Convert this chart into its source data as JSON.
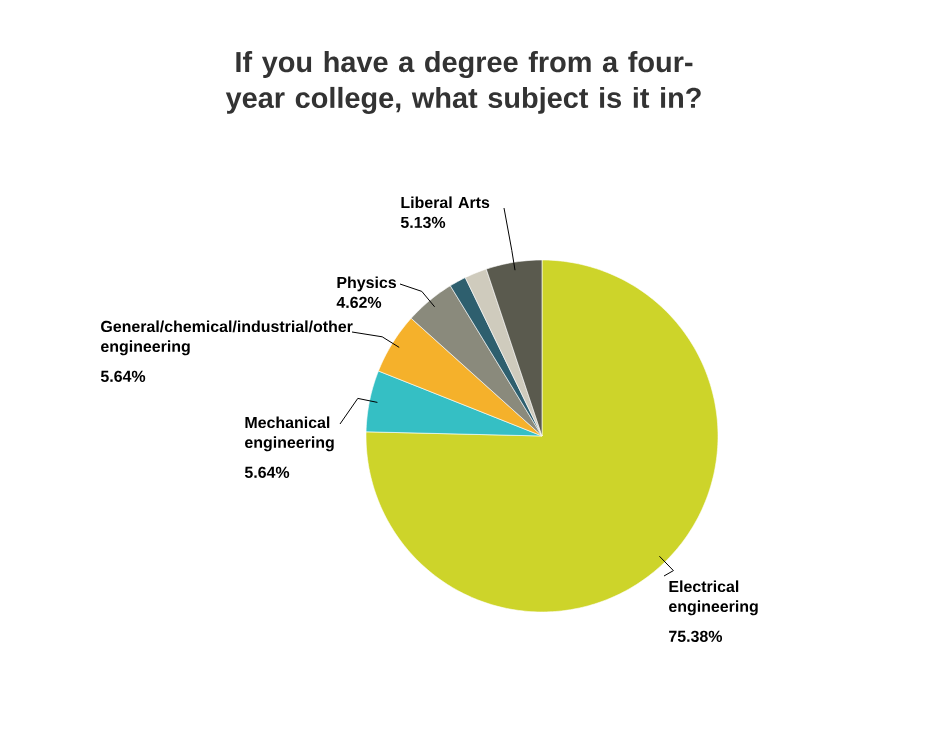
{
  "chart_data": {
    "type": "pie",
    "title": "If you have a degree from a four-year college, what subject is it in?",
    "categories": [
      "Electrical engineering",
      "Mechanical engineering",
      "General/chemical/industrial/other engineering",
      "Physics",
      null,
      null,
      "Liberal Arts"
    ],
    "values": [
      75.38,
      5.64,
      5.64,
      4.62,
      1.54,
      2.05,
      5.13
    ],
    "colors": [
      "#cdd42a",
      "#35bfc4",
      "#f5b12b",
      "#8a8a7c",
      "#2e5f6e",
      "#cfcbbd",
      "#5a5a4e"
    ],
    "value_labels": [
      "75.38%",
      "5.64%",
      "5.64%",
      "4.62%",
      null,
      null,
      "5.13%"
    ]
  }
}
